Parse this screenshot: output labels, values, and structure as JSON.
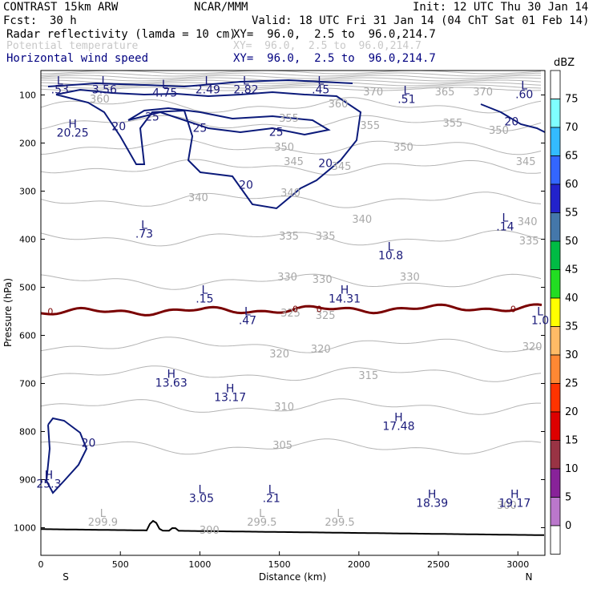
{
  "header": {
    "model": "CONTRAST 15km ARW",
    "center": "NCAR/MMM",
    "init": "Init: 12 UTC Thu 30 Jan 14",
    "fcst_label": "Fcst:",
    "fcst_value": "30 h",
    "valid": "Valid: 18 UTC Fri 31 Jan 14 (04 ChT Sat 01 Feb 14)",
    "fields": [
      {
        "name": "Radar reflectivity (lamda = 10 cm)",
        "xy": "XY=  96.0,  2.5 to  96.0,214.7",
        "color": "#000000"
      },
      {
        "name": "Potential temperature",
        "xy": "XY=  96.0,  2.5 to  96.0,214.7",
        "color": "#c8c8c8"
      },
      {
        "name": "Horizontal wind speed",
        "xy": "XY=  96.0,  2.5 to  96.0,214.7",
        "color": "#000080"
      }
    ]
  },
  "colorbar": {
    "unit": "dBZ",
    "levels": [
      "0",
      "5",
      "10",
      "15",
      "20",
      "25",
      "30",
      "35",
      "40",
      "45",
      "50",
      "55",
      "60",
      "65",
      "70",
      "75"
    ],
    "colors": [
      "#ffffff",
      "#7fffff",
      "#33bbff",
      "#3366ff",
      "#2222cc",
      "#4477aa",
      "#00bb44",
      "#22dd22",
      "#ffff00",
      "#ffbb66",
      "#ff8833",
      "#ff3300",
      "#dd0000",
      "#993344",
      "#882299",
      "#bb77cc",
      "#ffffff"
    ]
  },
  "chart_data": {
    "type": "cross-section contour",
    "xlabel": "Distance (km)",
    "ylabel": "Pressure (hPa)",
    "xlim": [
      0,
      3170
    ],
    "ylim": [
      1050,
      50
    ],
    "x_ticks": [
      "0",
      "500",
      "1000",
      "1500",
      "2000",
      "2500",
      "3000"
    ],
    "y_ticks": [
      "100",
      "200",
      "300",
      "400",
      "500",
      "600",
      "700",
      "800",
      "900",
      "1000"
    ],
    "left_end": "S",
    "right_end": "N",
    "theta_labels": [
      {
        "text": "370",
        "x": 2090,
        "p": 95
      },
      {
        "text": "365",
        "x": 2540,
        "p": 95
      },
      {
        "text": "370",
        "x": 2780,
        "p": 95
      },
      {
        "text": "360",
        "x": 370,
        "p": 110
      },
      {
        "text": "360",
        "x": 1870,
        "p": 120
      },
      {
        "text": "355",
        "x": 1560,
        "p": 150
      },
      {
        "text": "355",
        "x": 2070,
        "p": 165
      },
      {
        "text": "355",
        "x": 2590,
        "p": 160
      },
      {
        "text": "350",
        "x": 2880,
        "p": 175
      },
      {
        "text": "350",
        "x": 1530,
        "p": 210
      },
      {
        "text": "350",
        "x": 2280,
        "p": 210
      },
      {
        "text": "345",
        "x": 1590,
        "p": 240
      },
      {
        "text": "345",
        "x": 1890,
        "p": 250
      },
      {
        "text": "345",
        "x": 3050,
        "p": 240
      },
      {
        "text": "340",
        "x": 990,
        "p": 315
      },
      {
        "text": "340",
        "x": 1570,
        "p": 305
      },
      {
        "text": "340",
        "x": 2020,
        "p": 360
      },
      {
        "text": "340",
        "x": 3060,
        "p": 365
      },
      {
        "text": "335",
        "x": 1560,
        "p": 395
      },
      {
        "text": "335",
        "x": 1790,
        "p": 395
      },
      {
        "text": "335",
        "x": 3070,
        "p": 405
      },
      {
        "text": "330",
        "x": 1550,
        "p": 480
      },
      {
        "text": "330",
        "x": 1770,
        "p": 485
      },
      {
        "text": "330",
        "x": 2320,
        "p": 480
      },
      {
        "text": "325",
        "x": 1570,
        "p": 555
      },
      {
        "text": "325",
        "x": 1790,
        "p": 560
      },
      {
        "text": "320",
        "x": 1500,
        "p": 640
      },
      {
        "text": "320",
        "x": 1760,
        "p": 630
      },
      {
        "text": "320",
        "x": 3090,
        "p": 625
      },
      {
        "text": "315",
        "x": 2060,
        "p": 685
      },
      {
        "text": "310",
        "x": 1530,
        "p": 750
      },
      {
        "text": "305",
        "x": 1520,
        "p": 830
      },
      {
        "text": "300",
        "x": 2930,
        "p": 955
      },
      {
        "text": "300",
        "x": 1060,
        "p": 1007
      }
    ],
    "theta_extrema": [
      {
        "kind": "L",
        "value": "299.9",
        "x": 390,
        "p": 990
      },
      {
        "kind": "L",
        "value": "299.5",
        "x": 1390,
        "p": 990
      },
      {
        "kind": "L",
        "value": "299.5",
        "x": 1880,
        "p": 990
      }
    ],
    "wind_labels": [
      {
        "text": "25",
        "x": 700,
        "p": 147
      },
      {
        "text": "25",
        "x": 1000,
        "p": 170
      },
      {
        "text": "25",
        "x": 1480,
        "p": 178
      },
      {
        "text": "20",
        "x": 490,
        "p": 167
      },
      {
        "text": "20",
        "x": 2960,
        "p": 157
      },
      {
        "text": "20",
        "x": 1790,
        "p": 243
      },
      {
        "text": "20",
        "x": 1290,
        "p": 288
      },
      {
        "text": "20",
        "x": 300,
        "p": 825
      }
    ],
    "wind_extrema": [
      {
        "kind": "L",
        "value": ".53",
        "x": 120,
        "p": 90
      },
      {
        "kind": "L",
        "value": "3.56",
        "x": 400,
        "p": 90
      },
      {
        "kind": "L",
        "value": "4.75",
        "x": 780,
        "p": 97
      },
      {
        "kind": "L",
        "value": "2.49",
        "x": 1050,
        "p": 90
      },
      {
        "kind": "L",
        "value": "2.82",
        "x": 1290,
        "p": 90
      },
      {
        "kind": "L",
        "value": ".45",
        "x": 1760,
        "p": 90
      },
      {
        "kind": "L",
        "value": ".51",
        "x": 2300,
        "p": 110
      },
      {
        "kind": "L",
        "value": ".60",
        "x": 3040,
        "p": 100
      },
      {
        "kind": "H",
        "value": "20.25",
        "x": 200,
        "p": 180
      },
      {
        "kind": "L",
        "value": ".73",
        "x": 650,
        "p": 390
      },
      {
        "kind": "L",
        "value": ".14",
        "x": 2920,
        "p": 375
      },
      {
        "kind": "L",
        "value": "10.8",
        "x": 2200,
        "p": 435
      },
      {
        "kind": "L",
        "value": ".15",
        "x": 1030,
        "p": 525
      },
      {
        "kind": "H",
        "value": "14.31",
        "x": 1910,
        "p": 525
      },
      {
        "kind": "L",
        "value": ".47",
        "x": 1300,
        "p": 570
      },
      {
        "kind": "L",
        "value": "1.0",
        "x": 3140,
        "p": 570
      },
      {
        "kind": "H",
        "value": "13.63",
        "x": 820,
        "p": 700
      },
      {
        "kind": "H",
        "value": "13.17",
        "x": 1190,
        "p": 730
      },
      {
        "kind": "H",
        "value": "17.48",
        "x": 2250,
        "p": 790
      },
      {
        "kind": "H",
        "value": "25.3",
        "x": 50,
        "p": 910
      },
      {
        "kind": "L",
        "value": "3.05",
        "x": 1010,
        "p": 940
      },
      {
        "kind": "L",
        "value": ".21",
        "x": 1450,
        "p": 940
      },
      {
        "kind": "H",
        "value": "18.39",
        "x": 2460,
        "p": 950
      },
      {
        "kind": "H",
        "value": "19.17",
        "x": 2980,
        "p": 950
      }
    ],
    "reflectivity_labels": [
      {
        "text": "0",
        "x": 60,
        "p": 550
      },
      {
        "text": "0",
        "x": 1600,
        "p": 545
      },
      {
        "text": "0",
        "x": 1750,
        "p": 545
      },
      {
        "text": "0",
        "x": 2970,
        "p": 545
      }
    ]
  }
}
